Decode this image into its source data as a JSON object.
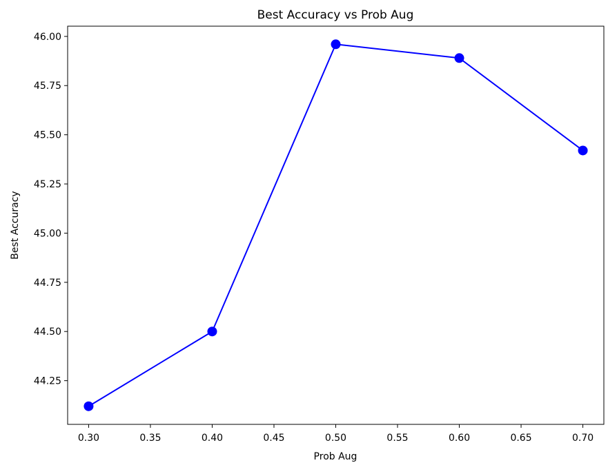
{
  "chart_data": {
    "type": "line",
    "title": "Best Accuracy vs Prob Aug",
    "xlabel": "Prob Aug",
    "ylabel": "Best Accuracy",
    "x": [
      0.3,
      0.4,
      0.5,
      0.6,
      0.7
    ],
    "series": [
      {
        "values": [
          44.12,
          44.5,
          45.96,
          45.89,
          45.42
        ],
        "color": "#0000ff",
        "marker": "circle"
      }
    ],
    "xlim": [
      0.283,
      0.717
    ],
    "ylim": [
      44.028,
      46.052
    ],
    "xticks": [
      0.3,
      0.35,
      0.4,
      0.45,
      0.5,
      0.55,
      0.6,
      0.65,
      0.7
    ],
    "xtick_labels": [
      "0.30",
      "0.35",
      "0.40",
      "0.45",
      "0.50",
      "0.55",
      "0.60",
      "0.65",
      "0.70"
    ],
    "yticks": [
      44.25,
      44.5,
      44.75,
      45.0,
      45.25,
      45.5,
      45.75,
      46.0
    ],
    "ytick_labels": [
      "44.25",
      "44.50",
      "44.75",
      "45.00",
      "45.25",
      "45.50",
      "45.75",
      "46.00"
    ],
    "grid": false,
    "legend": "none"
  }
}
